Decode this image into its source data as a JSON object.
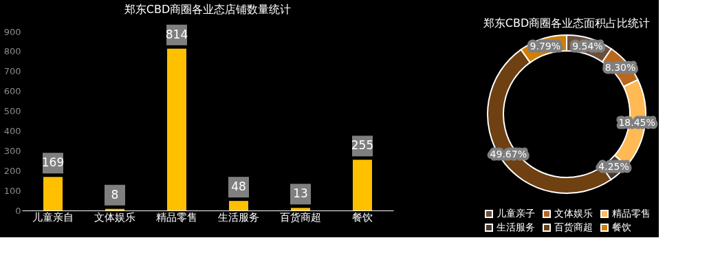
{
  "chart_data": [
    {
      "type": "bar",
      "title": "郑东CBD商圈各业态店铺数量统计",
      "categories": [
        "儿童亲自",
        "文体娱乐",
        "精品零售",
        "生活服务",
        "百货商超",
        "餐饮"
      ],
      "values": [
        169,
        8,
        814,
        48,
        13,
        255
      ],
      "color": "#ffc000",
      "ylim": [
        0,
        900
      ],
      "yticks": [
        0,
        100,
        200,
        300,
        400,
        500,
        600,
        700,
        800,
        900
      ],
      "grid": false,
      "data_labels": true,
      "legend": false
    },
    {
      "type": "donut",
      "title": "郑东CBD商圈各业态面积占比统计",
      "categories": [
        "儿童亲子",
        "文体娱乐",
        "精品零售",
        "生活服务",
        "百货商超",
        "餐饮"
      ],
      "values": [
        9.54,
        8.3,
        18.45,
        4.25,
        49.67,
        9.79
      ],
      "value_labels": [
        "9.54%",
        "8.30%",
        "18.45%",
        "4.25%",
        "49.67%",
        "9.79%"
      ],
      "colors": [
        "#6b4e3a",
        "#b8681c",
        "#ffb955",
        "#4a3a2c",
        "#6e4012",
        "#d17f00"
      ],
      "legend": "bottom"
    }
  ]
}
